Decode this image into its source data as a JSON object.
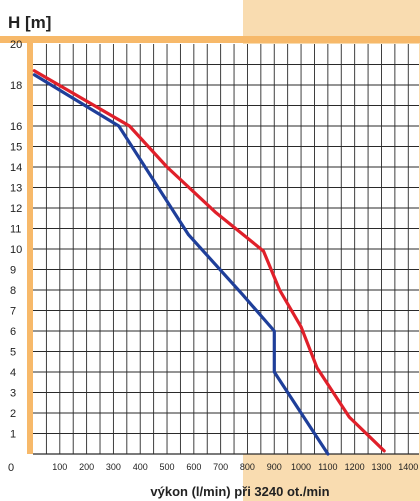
{
  "chart_data": {
    "type": "line",
    "title": "",
    "ylabel": "H [m]",
    "xlabel": "výkon (l/min) při 3240 ot./min",
    "xlim": [
      0,
      1440
    ],
    "ylim": [
      0,
      20
    ],
    "x_ticks": [
      100,
      200,
      300,
      400,
      500,
      600,
      700,
      800,
      900,
      1000,
      1100,
      1200,
      1300,
      1400
    ],
    "y_ticks": [
      1,
      2,
      3,
      4,
      5,
      6,
      7,
      8,
      9,
      10,
      11,
      12,
      13,
      14,
      15,
      16,
      18,
      20
    ],
    "origin_label": "0",
    "grid": true,
    "series": [
      {
        "color": "#e0202a",
        "points": [
          [
            5,
            18.7
          ],
          [
            360,
            16
          ],
          [
            500,
            14
          ],
          [
            680,
            11.8
          ],
          [
            860,
            9.9
          ],
          [
            920,
            8
          ],
          [
            1000,
            6.2
          ],
          [
            1060,
            4.2
          ],
          [
            1180,
            1.8
          ],
          [
            1310,
            0.15
          ]
        ]
      },
      {
        "color": "#1f3f9a",
        "points": [
          [
            5,
            18.5
          ],
          [
            320,
            16
          ],
          [
            580,
            10.7
          ],
          [
            780,
            7.8
          ],
          [
            900,
            6
          ],
          [
            900,
            4
          ],
          [
            1000,
            2
          ],
          [
            1100,
            0
          ]
        ]
      }
    ]
  },
  "colors": {
    "frame": "#f7b96a",
    "background_band": "#f9dcb0"
  }
}
